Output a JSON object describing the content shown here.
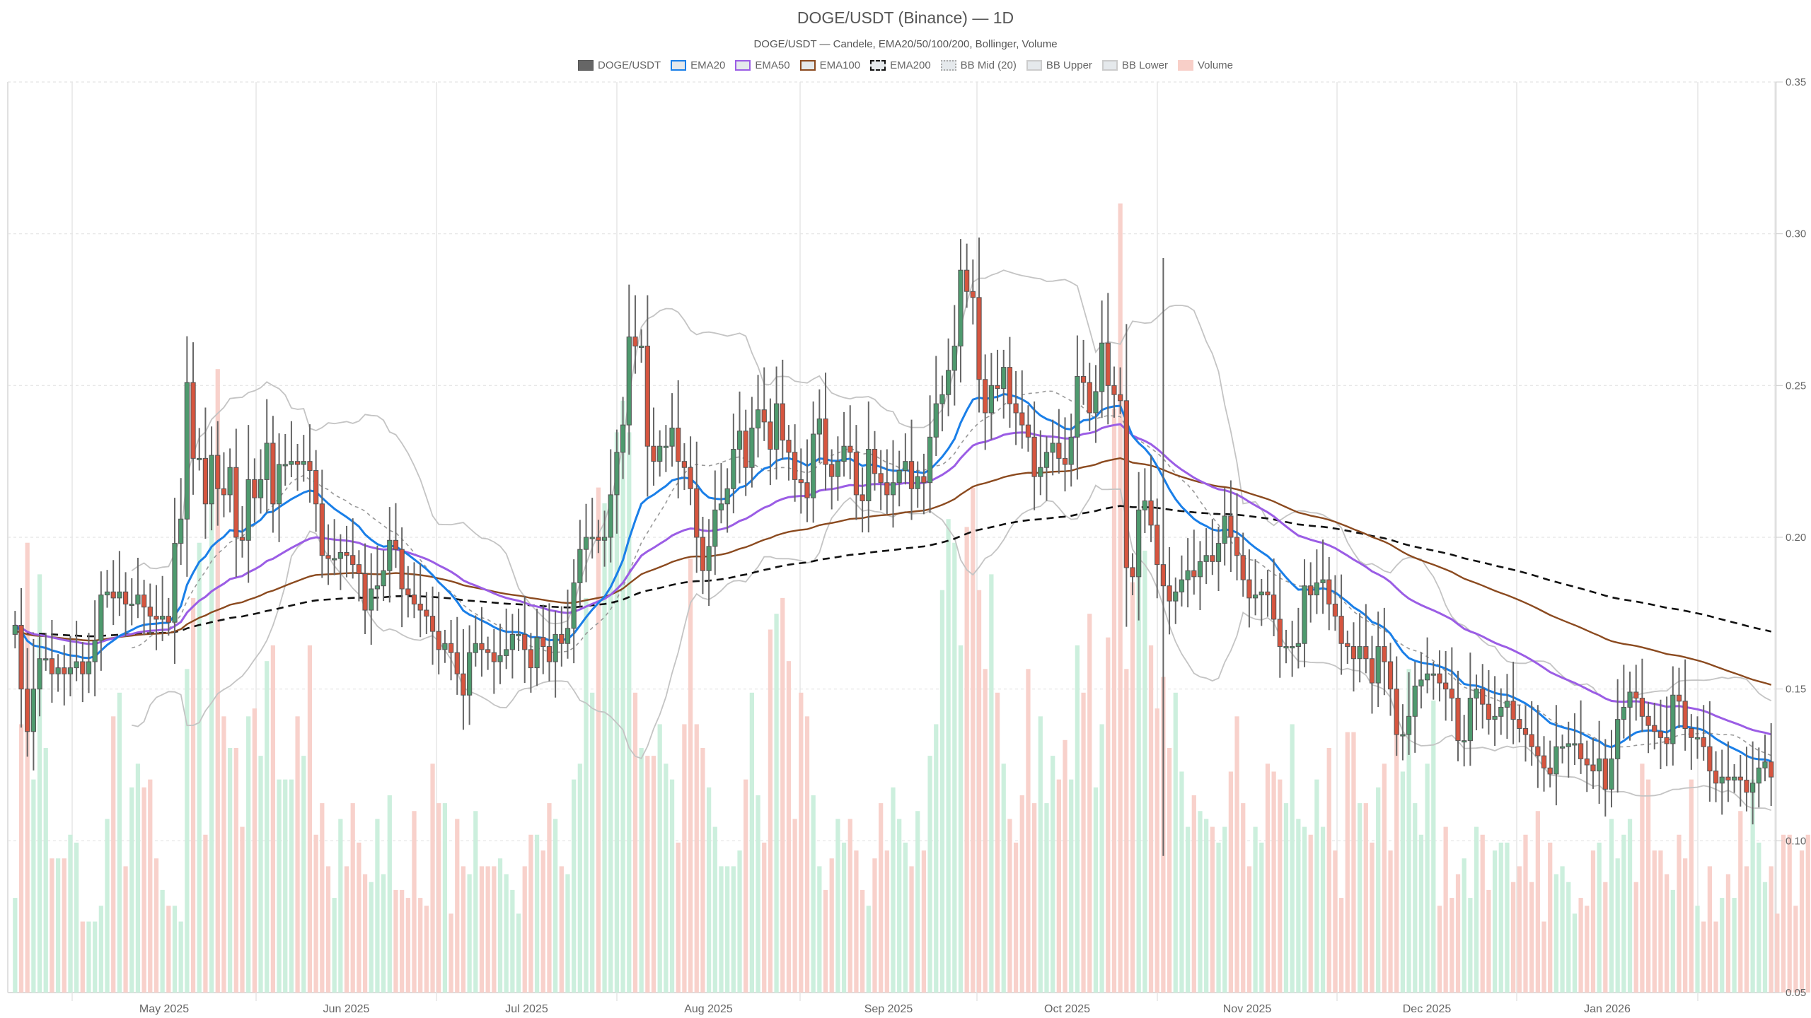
{
  "header": {
    "title": "DOGE/USDT (Binance) — 1D",
    "subtitle": "DOGE/USDT — Candele, EMA20/50/100/200, Bollinger, Volume"
  },
  "legend": [
    {
      "label": "DOGE/USDT",
      "style": "solid",
      "fill": "#666666",
      "stroke": "#555555"
    },
    {
      "label": "EMA20",
      "style": "outline",
      "fill": "#e5e9ec",
      "stroke": "#1a7fe8"
    },
    {
      "label": "EMA50",
      "style": "outline",
      "fill": "#e5e9ec",
      "stroke": "#9b5de5"
    },
    {
      "label": "EMA100",
      "style": "outline",
      "fill": "#e5e9ec",
      "stroke": "#8b4a1f"
    },
    {
      "label": "EMA200",
      "style": "dashed",
      "fill": "#e5e9ec",
      "stroke": "#111111"
    },
    {
      "label": "BB Mid (20)",
      "style": "dotted",
      "fill": "#e5e9ec",
      "stroke": "#aaaaaa"
    },
    {
      "label": "BB Upper",
      "style": "outline",
      "fill": "#e5e9ec",
      "stroke": "#cccccc"
    },
    {
      "label": "BB Lower",
      "style": "outline",
      "fill": "#e5e9ec",
      "stroke": "#cccccc"
    },
    {
      "label": "Volume",
      "style": "solid",
      "fill": "#f8cfc8",
      "stroke": "#f8cfc8"
    }
  ],
  "colors": {
    "up": "#4e9a6e",
    "down": "#d6553f",
    "wick": "#666666",
    "vol_up": "#c9eedb",
    "vol_down": "#f8cfc8",
    "ema20": "#1a7fe8",
    "ema50": "#9b5de5",
    "ema100": "#8b4a1f",
    "ema200": "#111111",
    "bb_mid": "#999999",
    "bb_band": "#c4c4c4",
    "grid": "#e6e6e6"
  },
  "chart_data": {
    "type": "candlestick",
    "title": "DOGE/USDT (Binance) — 1D",
    "subtitle": "DOGE/USDT — Candele, EMA20/50/100/200, Bollinger, Volume",
    "xlabel": "",
    "ylabel": "",
    "ylim": [
      0.05,
      0.35
    ],
    "yticks": [
      "0.05",
      "0.10",
      "0.15",
      "0.20",
      "0.25",
      "0.30",
      "0.35"
    ],
    "xticks": [
      "May 2025",
      "Jun 2025",
      "Jul 2025",
      "Aug 2025",
      "Sep 2025",
      "Oct 2025",
      "Nov 2025",
      "Dec 2025",
      "Jan 2026"
    ],
    "grid": true,
    "legend_position": "top",
    "y_axis_side": "right",
    "close": [
      0.171,
      0.15,
      0.136,
      0.15,
      0.16,
      0.16,
      0.155,
      0.157,
      0.155,
      0.157,
      0.159,
      0.155,
      0.159,
      0.166,
      0.181,
      0.182,
      0.18,
      0.182,
      0.178,
      0.178,
      0.181,
      0.177,
      0.174,
      0.173,
      0.174,
      0.172,
      0.198,
      0.206,
      0.251,
      0.226,
      0.226,
      0.211,
      0.227,
      0.216,
      0.214,
      0.223,
      0.2,
      0.199,
      0.219,
      0.213,
      0.219,
      0.231,
      0.211,
      0.224,
      0.224,
      0.225,
      0.224,
      0.225,
      0.222,
      0.211,
      0.194,
      0.193,
      0.193,
      0.195,
      0.194,
      0.191,
      0.188,
      0.176,
      0.183,
      0.184,
      0.189,
      0.199,
      0.196,
      0.183,
      0.181,
      0.178,
      0.176,
      0.174,
      0.169,
      0.163,
      0.165,
      0.162,
      0.155,
      0.148,
      0.162,
      0.165,
      0.163,
      0.162,
      0.159,
      0.161,
      0.163,
      0.168,
      0.168,
      0.163,
      0.157,
      0.167,
      0.164,
      0.159,
      0.168,
      0.165,
      0.17,
      0.185,
      0.196,
      0.2,
      0.2,
      0.199,
      0.2,
      0.214,
      0.228,
      0.237,
      0.266,
      0.263,
      0.263,
      0.23,
      0.225,
      0.23,
      0.23,
      0.236,
      0.225,
      0.223,
      0.216,
      0.2,
      0.189,
      0.197,
      0.209,
      0.211,
      0.216,
      0.229,
      0.235,
      0.223,
      0.236,
      0.242,
      0.238,
      0.229,
      0.244,
      0.232,
      0.228,
      0.219,
      0.218,
      0.213,
      0.234,
      0.239,
      0.224,
      0.22,
      0.225,
      0.23,
      0.228,
      0.214,
      0.212,
      0.229,
      0.221,
      0.218,
      0.214,
      0.218,
      0.222,
      0.225,
      0.216,
      0.22,
      0.218,
      0.233,
      0.244,
      0.247,
      0.255,
      0.263,
      0.288,
      0.281,
      0.279,
      0.252,
      0.241,
      0.25,
      0.249,
      0.256,
      0.244,
      0.241,
      0.237,
      0.233,
      0.22,
      0.223,
      0.228,
      0.231,
      0.226,
      0.224,
      0.233,
      0.253,
      0.251,
      0.241,
      0.248,
      0.264,
      0.25,
      0.247,
      0.245,
      0.19,
      0.187,
      0.209,
      0.212,
      0.204,
      0.191,
      0.184,
      0.179,
      0.182,
      0.186,
      0.189,
      0.187,
      0.192,
      0.194,
      0.192,
      0.198,
      0.207,
      0.2,
      0.194,
      0.186,
      0.18,
      0.181,
      0.182,
      0.181,
      0.173,
      0.164,
      0.164,
      0.164,
      0.165,
      0.184,
      0.181,
      0.185,
      0.186,
      0.178,
      0.174,
      0.165,
      0.164,
      0.16,
      0.164,
      0.16,
      0.152,
      0.164,
      0.159,
      0.15,
      0.135,
      0.135,
      0.141,
      0.151,
      0.153,
      0.155,
      0.155,
      0.152,
      0.15,
      0.147,
      0.133,
      0.133,
      0.147,
      0.15,
      0.145,
      0.14,
      0.141,
      0.144,
      0.146,
      0.14,
      0.137,
      0.135,
      0.131,
      0.128,
      0.124,
      0.122,
      0.131,
      0.131,
      0.132,
      0.132,
      0.127,
      0.125,
      0.123,
      0.127,
      0.117,
      0.127,
      0.14,
      0.144,
      0.149,
      0.147,
      0.141,
      0.138,
      0.136,
      0.134,
      0.132,
      0.148,
      0.146,
      0.137,
      0.134,
      0.134,
      0.131,
      0.123,
      0.119,
      0.121,
      0.12,
      0.121,
      0.12,
      0.116,
      0.119,
      0.124,
      0.126,
      0.121
    ],
    "open": [
      0.168,
      0.171,
      0.15,
      0.136,
      0.15,
      0.16,
      0.16,
      0.155,
      0.157,
      0.155,
      0.157,
      0.159,
      0.155,
      0.159,
      0.166,
      0.181,
      0.182,
      0.18,
      0.182,
      0.178,
      0.178,
      0.181,
      0.177,
      0.174,
      0.173,
      0.174,
      0.172,
      0.198,
      0.206,
      0.251,
      0.226,
      0.226,
      0.211,
      0.227,
      0.216,
      0.214,
      0.223,
      0.2,
      0.199,
      0.219,
      0.213,
      0.219,
      0.231,
      0.211,
      0.224,
      0.224,
      0.225,
      0.224,
      0.225,
      0.222,
      0.211,
      0.194,
      0.193,
      0.193,
      0.195,
      0.194,
      0.191,
      0.188,
      0.176,
      0.183,
      0.184,
      0.189,
      0.199,
      0.196,
      0.183,
      0.181,
      0.178,
      0.176,
      0.174,
      0.169,
      0.163,
      0.165,
      0.162,
      0.155,
      0.148,
      0.162,
      0.165,
      0.163,
      0.162,
      0.159,
      0.161,
      0.163,
      0.168,
      0.168,
      0.163,
      0.157,
      0.167,
      0.164,
      0.159,
      0.168,
      0.165,
      0.17,
      0.185,
      0.196,
      0.2,
      0.2,
      0.199,
      0.2,
      0.214,
      0.228,
      0.237,
      0.266,
      0.263,
      0.263,
      0.23,
      0.225,
      0.23,
      0.23,
      0.236,
      0.225,
      0.223,
      0.216,
      0.2,
      0.189,
      0.197,
      0.209,
      0.211,
      0.216,
      0.229,
      0.235,
      0.223,
      0.236,
      0.242,
      0.238,
      0.229,
      0.244,
      0.232,
      0.228,
      0.219,
      0.218,
      0.213,
      0.234,
      0.239,
      0.224,
      0.22,
      0.225,
      0.23,
      0.228,
      0.214,
      0.212,
      0.229,
      0.221,
      0.218,
      0.214,
      0.218,
      0.222,
      0.225,
      0.216,
      0.22,
      0.218,
      0.233,
      0.244,
      0.247,
      0.255,
      0.263,
      0.288,
      0.281,
      0.279,
      0.252,
      0.241,
      0.25,
      0.249,
      0.256,
      0.244,
      0.241,
      0.237,
      0.233,
      0.22,
      0.223,
      0.228,
      0.231,
      0.226,
      0.224,
      0.233,
      0.253,
      0.251,
      0.241,
      0.248,
      0.264,
      0.25,
      0.247,
      0.245,
      0.19,
      0.187,
      0.209,
      0.212,
      0.204,
      0.191,
      0.184,
      0.179,
      0.182,
      0.186,
      0.189,
      0.187,
      0.192,
      0.194,
      0.192,
      0.198,
      0.207,
      0.2,
      0.194,
      0.186,
      0.18,
      0.181,
      0.182,
      0.181,
      0.173,
      0.164,
      0.164,
      0.164,
      0.165,
      0.184,
      0.181,
      0.185,
      0.186,
      0.178,
      0.174,
      0.165,
      0.164,
      0.16,
      0.164,
      0.16,
      0.152,
      0.164,
      0.159,
      0.15,
      0.135,
      0.135,
      0.141,
      0.151,
      0.153,
      0.155,
      0.155,
      0.152,
      0.15,
      0.147,
      0.133,
      0.133,
      0.147,
      0.15,
      0.145,
      0.14,
      0.141,
      0.144,
      0.146,
      0.14,
      0.137,
      0.135,
      0.131,
      0.128,
      0.124,
      0.122,
      0.131,
      0.131,
      0.132,
      0.132,
      0.127,
      0.125,
      0.123,
      0.127,
      0.117,
      0.127,
      0.14,
      0.144,
      0.149,
      0.147,
      0.141,
      0.138,
      0.136,
      0.134,
      0.132,
      0.148,
      0.146,
      0.137,
      0.134,
      0.134,
      0.131,
      0.123,
      0.119,
      0.121,
      0.12,
      0.121,
      0.12,
      0.116,
      0.119,
      0.124,
      0.126
    ],
    "volume_relative": [
      0.12,
      0.34,
      0.57,
      0.27,
      0.53,
      0.31,
      0.17,
      0.17,
      0.17,
      0.2,
      0.19,
      0.09,
      0.09,
      0.09,
      0.11,
      0.22,
      0.35,
      0.38,
      0.16,
      0.26,
      0.29,
      0.26,
      0.27,
      0.17,
      0.13,
      0.11,
      0.11,
      0.09,
      0.41,
      0.5,
      0.57,
      0.2,
      0.62,
      0.79,
      0.35,
      0.31,
      0.31,
      0.21,
      0.35,
      0.36,
      0.3,
      0.42,
      0.44,
      0.27,
      0.27,
      0.27,
      0.35,
      0.3,
      0.44,
      0.2,
      0.24,
      0.16,
      0.12,
      0.22,
      0.16,
      0.24,
      0.19,
      0.15,
      0.14,
      0.22,
      0.15,
      0.25,
      0.13,
      0.13,
      0.12,
      0.23,
      0.12,
      0.11,
      0.29,
      0.24,
      0.24,
      0.1,
      0.22,
      0.16,
      0.15,
      0.23,
      0.16,
      0.16,
      0.16,
      0.17,
      0.15,
      0.13,
      0.1,
      0.16,
      0.2,
      0.2,
      0.18,
      0.24,
      0.22,
      0.16,
      0.15,
      0.27,
      0.29,
      0.5,
      0.38,
      0.64,
      0.62,
      0.62,
      0.71,
      0.75,
      0.71,
      0.38,
      0.31,
      0.3,
      0.3,
      0.34,
      0.29,
      0.27,
      0.19,
      0.34,
      0.55,
      0.34,
      0.31,
      0.26,
      0.21,
      0.16,
      0.16,
      0.16,
      0.18,
      0.27,
      0.38,
      0.25,
      0.19,
      0.46,
      0.48,
      0.5,
      0.42,
      0.22,
      0.38,
      0.35,
      0.25,
      0.16,
      0.13,
      0.17,
      0.22,
      0.19,
      0.22,
      0.18,
      0.13,
      0.11,
      0.17,
      0.24,
      0.18,
      0.26,
      0.22,
      0.19,
      0.16,
      0.23,
      0.18,
      0.3,
      0.34,
      0.51,
      0.6,
      0.57,
      0.44,
      0.59,
      0.64,
      0.51,
      0.41,
      0.53,
      0.38,
      0.29,
      0.22,
      0.19,
      0.25,
      0.41,
      0.24,
      0.35,
      0.24,
      0.3,
      0.27,
      0.32,
      0.27,
      0.44,
      0.38,
      0.48,
      0.26,
      0.34,
      0.45,
      0.74,
      1.0,
      0.41,
      0.52,
      0.6,
      0.56,
      0.44,
      0.36,
      0.4,
      0.31,
      0.38,
      0.28,
      0.21,
      0.25,
      0.23,
      0.22,
      0.21,
      0.19,
      0.21,
      0.28,
      0.35,
      0.24,
      0.16,
      0.21,
      0.19,
      0.29,
      0.28,
      0.27,
      0.24,
      0.34,
      0.22,
      0.21,
      0.2,
      0.27,
      0.21,
      0.31,
      0.18,
      0.12,
      0.33,
      0.33,
      0.24,
      0.24,
      0.19,
      0.26,
      0.29,
      0.18,
      0.34,
      0.28,
      0.41,
      0.24,
      0.2,
      0.29,
      0.37,
      0.11,
      0.21,
      0.12,
      0.15,
      0.17,
      0.12,
      0.21,
      0.2,
      0.13,
      0.18,
      0.19,
      0.19,
      0.14,
      0.16,
      0.2,
      0.14,
      0.23,
      0.09,
      0.19,
      0.15,
      0.16,
      0.14,
      0.1,
      0.12,
      0.11,
      0.18,
      0.19,
      0.14,
      0.22,
      0.17,
      0.2,
      0.22,
      0.14,
      0.29,
      0.27,
      0.18,
      0.18,
      0.15,
      0.13,
      0.2,
      0.17,
      0.27,
      0.11,
      0.09,
      0.16,
      0.09,
      0.12,
      0.15,
      0.12,
      0.23,
      0.16,
      0.27,
      0.19,
      0.14,
      0.16,
      0.1,
      0.2,
      0.2,
      0.11,
      0.18,
      0.2,
      0.21,
      0.18,
      0.09
    ],
    "series_visible": [
      "DOGE/USDT",
      "EMA20",
      "EMA50",
      "EMA100",
      "EMA200",
      "BB Mid (20)",
      "BB Upper",
      "BB Lower",
      "Volume"
    ]
  }
}
